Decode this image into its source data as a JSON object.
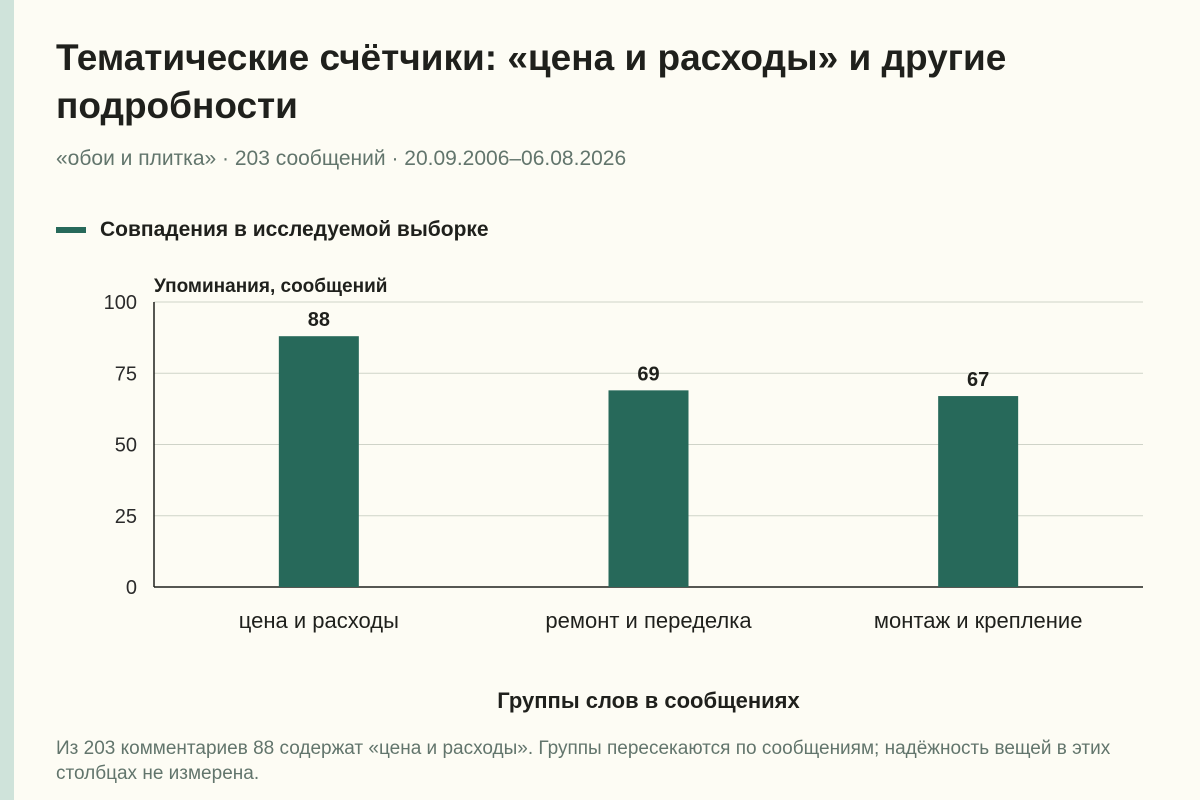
{
  "header": {
    "title": "Тематические счётчики: «цена и расходы» и другие подробности",
    "subtitle": "«обои и плитка» · 203 сообщений · 20.09.2006–06.08.2026"
  },
  "colors": {
    "bar": "#27695a",
    "background": "#fdfcf4",
    "accent_stripe": "#cfe3da"
  },
  "chart_data": {
    "type": "bar",
    "ylabel": "Упоминания, сообщений",
    "xlabel": "Группы слов в сообщениях",
    "categories": [
      "цена и расходы",
      "ремонт и переделка",
      "монтаж и крепление"
    ],
    "series": [
      {
        "name": "Совпадения в исследуемой выборке",
        "values": [
          88,
          69,
          67
        ]
      }
    ],
    "ylim": [
      0,
      100
    ],
    "yticks": [
      0,
      25,
      50,
      75,
      100
    ],
    "grid": true,
    "legend": "top-left"
  },
  "footnote": "Из 203 комментариев 88 содержат «цена и расходы». Группы пересекаются по сообщениям; надёжность вещей в этих столбцах не измерена."
}
